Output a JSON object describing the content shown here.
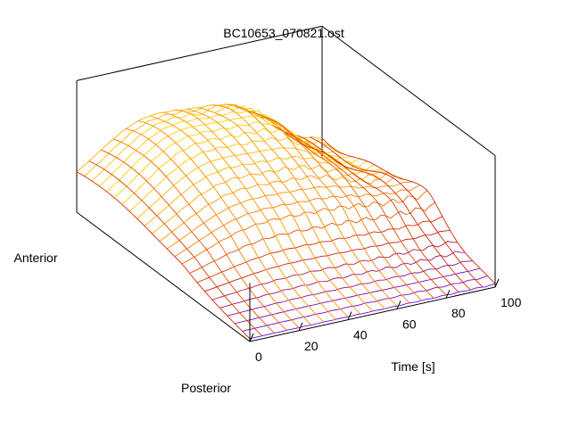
{
  "chart_data": {
    "type": "surface",
    "title": "BC10653_070821.ost",
    "xlabel": "Time [s]",
    "ylabels": {
      "front": "Posterior",
      "back": "Anterior"
    },
    "xticks": [
      0,
      20,
      40,
      60,
      80,
      100
    ],
    "xlim": [
      0,
      100
    ],
    "ylim": [
      0,
      1
    ],
    "zlim": [
      0,
      1
    ],
    "grid": false,
    "legend": "none",
    "colormap": [
      "#6600ff",
      "#cc2200",
      "#ff8800",
      "#ffff00"
    ],
    "surface": {
      "time_samples": [
        0,
        5,
        10,
        15,
        20,
        25,
        30,
        35,
        40,
        45,
        50,
        55,
        60,
        65,
        70,
        75,
        80,
        85,
        90,
        95,
        100
      ],
      "position_samples": 24,
      "peak_time": 30,
      "peak_position": 0.85,
      "peak_height": 0.92
    }
  }
}
